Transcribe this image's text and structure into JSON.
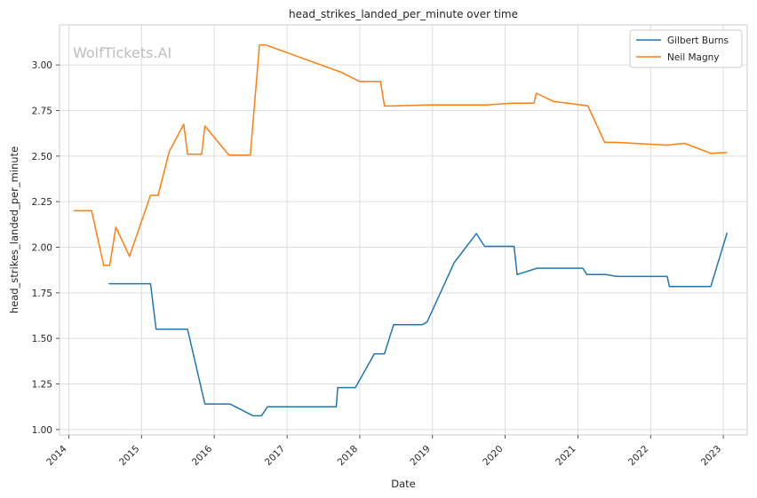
{
  "chart_data": {
    "type": "line",
    "title": "head_strikes_landed_per_minute over time",
    "xlabel": "Date",
    "ylabel": "head_strikes_landed_per_minute",
    "watermark": "WolfTickets.AI",
    "x_ticks": [
      "2014",
      "2015",
      "2016",
      "2017",
      "2018",
      "2019",
      "2020",
      "2021",
      "2022",
      "2023"
    ],
    "y_ticks": [
      "1.00",
      "1.25",
      "1.50",
      "1.75",
      "2.00",
      "2.25",
      "2.50",
      "2.75",
      "3.00"
    ],
    "xlim": [
      "2013-11-15",
      "2023-05-01"
    ],
    "ylim": [
      0.97,
      3.22
    ],
    "grid": true,
    "legend_position": "top-right",
    "series": [
      {
        "name": "Gilbert Burns",
        "color": "#1f77b4",
        "points": [
          [
            "2014-07-20",
            1.8
          ],
          [
            "2015-02-15",
            1.8
          ],
          [
            "2015-03-15",
            1.55
          ],
          [
            "2015-08-20",
            1.55
          ],
          [
            "2015-11-15",
            1.14
          ],
          [
            "2016-03-20",
            1.14
          ],
          [
            "2016-07-15",
            1.075
          ],
          [
            "2016-08-25",
            1.075
          ],
          [
            "2016-09-25",
            1.125
          ],
          [
            "2017-09-05",
            1.125
          ],
          [
            "2017-09-12",
            1.23
          ],
          [
            "2017-12-10",
            1.23
          ],
          [
            "2018-03-15",
            1.415
          ],
          [
            "2018-05-05",
            1.415
          ],
          [
            "2018-06-20",
            1.575
          ],
          [
            "2018-11-10",
            1.575
          ],
          [
            "2018-12-05",
            1.59
          ],
          [
            "2019-04-20",
            1.915
          ],
          [
            "2019-08-10",
            2.075
          ],
          [
            "2019-09-20",
            2.005
          ],
          [
            "2020-02-15",
            2.005
          ],
          [
            "2020-03-01",
            1.85
          ],
          [
            "2020-06-10",
            1.885
          ],
          [
            "2021-01-25",
            1.885
          ],
          [
            "2021-02-15",
            1.85
          ],
          [
            "2021-05-20",
            1.85
          ],
          [
            "2021-07-15",
            1.84
          ],
          [
            "2022-03-25",
            1.84
          ],
          [
            "2022-04-05",
            1.785
          ],
          [
            "2022-10-30",
            1.785
          ],
          [
            "2023-01-20",
            2.08
          ]
        ]
      },
      {
        "name": "Neil Magny",
        "color": "#ff7f0e",
        "points": [
          [
            "2014-01-25",
            2.2
          ],
          [
            "2014-04-25",
            2.2
          ],
          [
            "2014-06-25",
            1.9
          ],
          [
            "2014-07-25",
            1.9
          ],
          [
            "2014-08-25",
            2.11
          ],
          [
            "2014-11-01",
            1.95
          ],
          [
            "2015-02-15",
            2.285
          ],
          [
            "2015-03-25",
            2.285
          ],
          [
            "2015-05-20",
            2.525
          ],
          [
            "2015-08-01",
            2.675
          ],
          [
            "2015-08-20",
            2.51
          ],
          [
            "2015-10-30",
            2.51
          ],
          [
            "2015-11-15",
            2.665
          ],
          [
            "2016-03-15",
            2.505
          ],
          [
            "2016-06-30",
            2.505
          ],
          [
            "2016-08-15",
            3.11
          ],
          [
            "2016-09-15",
            3.11
          ],
          [
            "2017-09-30",
            2.96
          ],
          [
            "2017-12-30",
            2.91
          ],
          [
            "2018-04-15",
            2.91
          ],
          [
            "2018-05-05",
            2.775
          ],
          [
            "2018-06-15",
            2.775
          ],
          [
            "2018-12-01",
            2.78
          ],
          [
            "2019-09-20",
            2.78
          ],
          [
            "2020-02-10",
            2.79
          ],
          [
            "2020-05-25",
            2.79
          ],
          [
            "2020-06-05",
            2.845
          ],
          [
            "2020-08-30",
            2.8
          ],
          [
            "2021-01-20",
            2.78
          ],
          [
            "2021-02-20",
            2.775
          ],
          [
            "2021-05-15",
            2.575
          ],
          [
            "2021-07-10",
            2.575
          ],
          [
            "2022-03-25",
            2.56
          ],
          [
            "2022-06-20",
            2.57
          ],
          [
            "2022-11-01",
            2.515
          ],
          [
            "2023-01-20",
            2.52
          ]
        ]
      }
    ]
  }
}
